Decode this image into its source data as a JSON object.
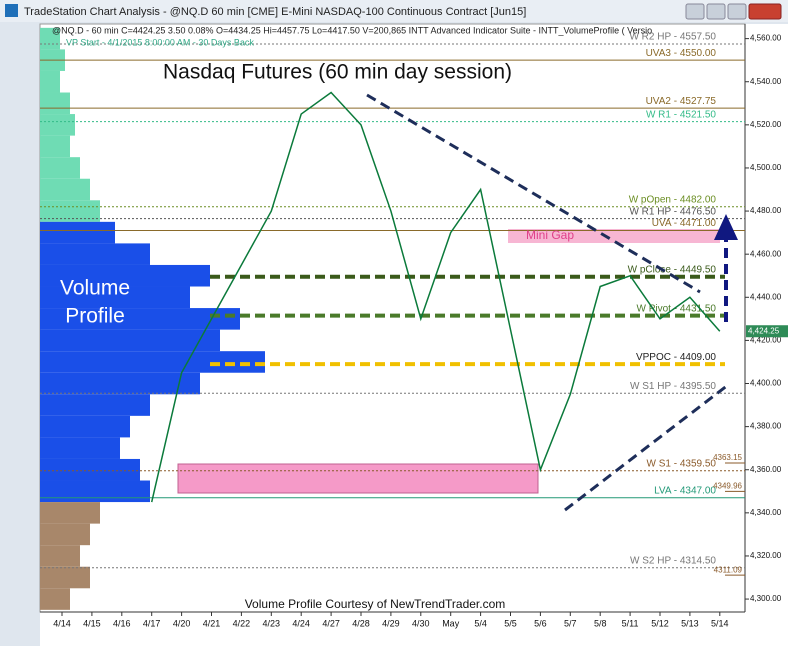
{
  "window": {
    "title": "TradeStation Chart Analysis - @NQ.D 60 min [CME] E-Mini NASDAQ-100 Continuous Contract [Jun15]"
  },
  "chart_data": {
    "type": "line",
    "header": "@NQ.D - 60 min  C=4424.25  3.50  0.08%  O=4434.25  Hi=4457.75  Lo=4417.50  V=200,865  INTT Advanced Indicator Suite - INTT_VolumeProfile ( Versio",
    "subheader": "VP Start - 4/1/2015 8:00:00 AM - 30 Days Back",
    "title": "Nasdaq Futures (60 min day session)",
    "footer": "Volume Profile Courtesy of NewTrendTrader.com",
    "profile_title": [
      "Volume",
      "Profile"
    ],
    "gap_label": "Mini Gap",
    "categories": [
      "4/14",
      "4/15",
      "4/16",
      "4/17",
      "4/20",
      "4/21",
      "4/22",
      "4/23",
      "4/24",
      "4/27",
      "4/28",
      "4/29",
      "4/30",
      "May",
      "5/4",
      "5/5",
      "5/6",
      "5/7",
      "5/8",
      "5/11",
      "5/12",
      "5/13",
      "5/14"
    ],
    "series": [
      {
        "name": "@NQ.D",
        "color": "#0b7a3b",
        "values": [
          null,
          null,
          null,
          4345,
          4405,
          4430,
          4455,
          4480,
          4525,
          4535,
          4520,
          4480,
          4430,
          4470,
          4490,
          4425,
          4360,
          4395,
          4445,
          4450,
          4430,
          4440,
          4424.25
        ]
      }
    ],
    "last_price": {
      "value": 4424.25,
      "label": "4,424.25"
    },
    "ylim": [
      4294,
      4564
    ],
    "yticks": [
      {
        "value": 4300,
        "label": "4,300.00"
      },
      {
        "value": 4320,
        "label": "4,320.00"
      },
      {
        "value": 4340,
        "label": "4,340.00"
      },
      {
        "value": 4360,
        "label": "4,360.00"
      },
      {
        "value": 4380,
        "label": "4,380.00"
      },
      {
        "value": 4400,
        "label": "4,400.00"
      },
      {
        "value": 4420,
        "label": "4,420.00"
      },
      {
        "value": 4440,
        "label": "4,440.00"
      },
      {
        "value": 4460,
        "label": "4,460.00"
      },
      {
        "value": 4480,
        "label": "4,480.00"
      },
      {
        "value": 4500,
        "label": "4,500.00"
      },
      {
        "value": 4520,
        "label": "4,520.00"
      },
      {
        "value": 4540,
        "label": "4,540.00"
      },
      {
        "value": 4560,
        "label": "4,560.00"
      }
    ],
    "levels": [
      {
        "label": "W R2 HP - 4557.50",
        "value": 4557.5,
        "color": "#777777",
        "style": "dotted"
      },
      {
        "label": "UVA3 - 4550.00",
        "value": 4550,
        "color": "#8a6a2a",
        "style": "solid"
      },
      {
        "label": "UVA2 - 4527.75",
        "value": 4527.75,
        "color": "#8a6a2a",
        "style": "solid"
      },
      {
        "label": "W R1 - 4521.50",
        "value": 4521.5,
        "color": "#33bb88",
        "style": "dotted"
      },
      {
        "label": "W pOpen - 4482.00",
        "value": 4482,
        "color": "#6b8e23",
        "style": "dotted"
      },
      {
        "label": "W R1 HP - 4476.50",
        "value": 4476.5,
        "color": "#555555",
        "style": "dotted"
      },
      {
        "label": "UVA - 4471.00",
        "value": 4471,
        "color": "#8a6a2a",
        "style": "solid"
      },
      {
        "label": "W pClose - 4449.50",
        "value": 4449.5,
        "color": "#3a5a1a",
        "style": "thick"
      },
      {
        "label": "W Pivot - 4431.50",
        "value": 4431.5,
        "color": "#4a7a2a",
        "style": "thick"
      },
      {
        "label": "VPPOC - 4409.00",
        "value": 4409,
        "color": "#f0c000",
        "style": "thick"
      },
      {
        "label": "W S1 HP - 4395.50",
        "value": 4395.5,
        "color": "#777777",
        "style": "dotted"
      },
      {
        "label": "W S1 - 4359.50",
        "value": 4359.5,
        "color": "#8a5a2a",
        "style": "dotted"
      },
      {
        "label": "LVA - 4347.00",
        "value": 4347,
        "color": "#229977",
        "style": "solid"
      },
      {
        "label": "W S2 HP - 4314.50",
        "value": 4314.5,
        "color": "#777777",
        "style": "dotted"
      }
    ],
    "tags": [
      {
        "value": 4363.15,
        "label": "4363.15"
      },
      {
        "value": 4349.96,
        "label": "4349.96"
      },
      {
        "value": 4311.09,
        "label": "4311.09"
      }
    ],
    "volume_profile": {
      "prices": [
        4560,
        4550,
        4540,
        4530,
        4520,
        4510,
        4500,
        4490,
        4480,
        4470,
        4460,
        4450,
        4440,
        4430,
        4420,
        4410,
        4400,
        4390,
        4380,
        4370,
        4360,
        4350,
        4340,
        4330,
        4320,
        4310,
        4300
      ],
      "volumes": [
        20,
        25,
        20,
        30,
        35,
        30,
        40,
        50,
        60,
        75,
        110,
        170,
        150,
        200,
        180,
        225,
        160,
        110,
        90,
        80,
        100,
        110,
        60,
        50,
        40,
        50,
        30
      ],
      "colors": {
        "above": "#6fdcb4",
        "inside": "#1a4fe8",
        "below": "#a8876a"
      }
    }
  }
}
